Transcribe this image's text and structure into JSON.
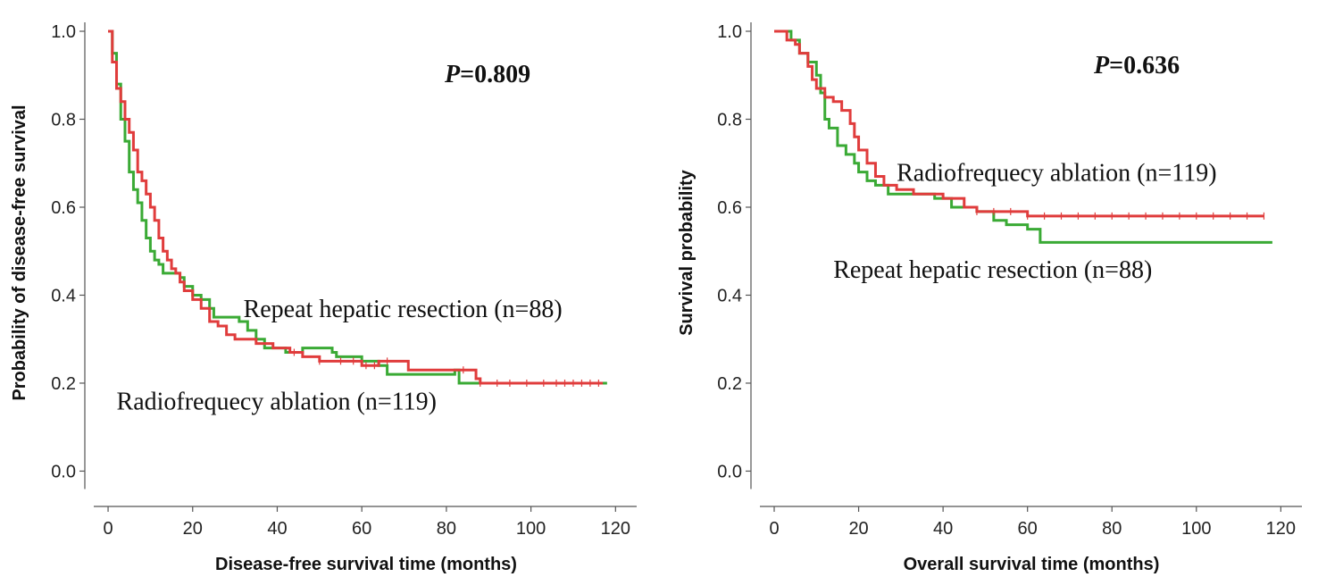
{
  "chart_data": [
    {
      "type": "line",
      "xlabel": "Disease-free survival time (months)",
      "ylabel": "Probability of disease-free survival",
      "xlim": [
        0,
        120
      ],
      "ylim": [
        0.0,
        1.0
      ],
      "xticks": [
        "0",
        "20",
        "40",
        "60",
        "80",
        "100",
        "120"
      ],
      "yticks": [
        "0.0",
        "0.2",
        "0.4",
        "0.6",
        "0.8",
        "1.0"
      ],
      "xtick_values": [
        0,
        20,
        40,
        60,
        80,
        100,
        120
      ],
      "ytick_values": [
        0.0,
        0.2,
        0.4,
        0.6,
        0.8,
        1.0
      ],
      "p_value": {
        "prefix": "P",
        "text": "=0.809"
      },
      "annotations": [
        {
          "text": "Repeat hepatic resection (n=88)",
          "x": 32,
          "y": 0.35
        },
        {
          "text": "Radiofrequecy ablation (n=119)",
          "x": 2,
          "y": 0.14
        }
      ],
      "series": [
        {
          "color": "#3aaa35",
          "points": [
            [
              0,
              1.0
            ],
            [
              1,
              0.95
            ],
            [
              2,
              0.88
            ],
            [
              3,
              0.8
            ],
            [
              4,
              0.75
            ],
            [
              5,
              0.68
            ],
            [
              6,
              0.64
            ],
            [
              7,
              0.61
            ],
            [
              8,
              0.57
            ],
            [
              9,
              0.53
            ],
            [
              10,
              0.5
            ],
            [
              11,
              0.48
            ],
            [
              12,
              0.47
            ],
            [
              13,
              0.45
            ],
            [
              17,
              0.44
            ],
            [
              18,
              0.42
            ],
            [
              20,
              0.4
            ],
            [
              22,
              0.39
            ],
            [
              24,
              0.37
            ],
            [
              25,
              0.35
            ],
            [
              31,
              0.34
            ],
            [
              33,
              0.32
            ],
            [
              35,
              0.3
            ],
            [
              37,
              0.28
            ],
            [
              42,
              0.27
            ],
            [
              46,
              0.28
            ],
            [
              52,
              0.28
            ],
            [
              53,
              0.27
            ],
            [
              54,
              0.26
            ],
            [
              60,
              0.25
            ],
            [
              64,
              0.24
            ],
            [
              66,
              0.22
            ],
            [
              80,
              0.22
            ],
            [
              82,
              0.23
            ],
            [
              83,
              0.2
            ],
            [
              118,
              0.2
            ]
          ]
        },
        {
          "color": "#e03c3c",
          "points": [
            [
              0,
              1.0
            ],
            [
              1,
              0.93
            ],
            [
              2,
              0.87
            ],
            [
              3,
              0.84
            ],
            [
              4,
              0.8
            ],
            [
              5,
              0.77
            ],
            [
              6,
              0.73
            ],
            [
              7,
              0.68
            ],
            [
              8,
              0.66
            ],
            [
              9,
              0.63
            ],
            [
              10,
              0.6
            ],
            [
              11,
              0.57
            ],
            [
              12,
              0.53
            ],
            [
              13,
              0.5
            ],
            [
              14,
              0.48
            ],
            [
              15,
              0.46
            ],
            [
              16,
              0.45
            ],
            [
              17,
              0.43
            ],
            [
              18,
              0.41
            ],
            [
              20,
              0.39
            ],
            [
              22,
              0.37
            ],
            [
              24,
              0.34
            ],
            [
              26,
              0.33
            ],
            [
              28,
              0.31
            ],
            [
              30,
              0.3
            ],
            [
              33,
              0.3
            ],
            [
              35,
              0.29
            ],
            [
              39,
              0.28
            ],
            [
              43,
              0.27
            ],
            [
              46,
              0.26
            ],
            [
              50,
              0.25
            ],
            [
              56,
              0.25
            ],
            [
              60,
              0.24
            ],
            [
              64,
              0.25
            ],
            [
              71,
              0.23
            ],
            [
              86,
              0.23
            ],
            [
              87,
              0.21
            ],
            [
              88,
              0.2
            ],
            [
              117,
              0.2
            ]
          ]
        }
      ],
      "censor_ticks_x": [
        44,
        50,
        55,
        58,
        61,
        63,
        66,
        84,
        88,
        92,
        95,
        99,
        103,
        106,
        108,
        110,
        112,
        114,
        116
      ]
    },
    {
      "type": "line",
      "xlabel": "Overall survival time (months)",
      "ylabel": "Survival probability",
      "xlim": [
        0,
        120
      ],
      "ylim": [
        0.0,
        1.0
      ],
      "xticks": [
        "0",
        "20",
        "40",
        "60",
        "80",
        "100",
        "120"
      ],
      "yticks": [
        "0.0",
        "0.2",
        "0.4",
        "0.6",
        "0.8",
        "1.0"
      ],
      "xtick_values": [
        0,
        20,
        40,
        60,
        80,
        100,
        120
      ],
      "ytick_values": [
        0.0,
        0.2,
        0.4,
        0.6,
        0.8,
        1.0
      ],
      "p_value": {
        "prefix": "P",
        "text": "=0.636"
      },
      "annotations": [
        {
          "text": "Radiofrequecy ablation (n=119)",
          "x": 29,
          "y": 0.66
        },
        {
          "text": "Repeat hepatic resection (n=88)",
          "x": 14,
          "y": 0.44
        }
      ],
      "series": [
        {
          "color": "#3aaa35",
          "points": [
            [
              0,
              1.0
            ],
            [
              4,
              0.98
            ],
            [
              6,
              0.95
            ],
            [
              8,
              0.93
            ],
            [
              10,
              0.9
            ],
            [
              11,
              0.86
            ],
            [
              12,
              0.8
            ],
            [
              13,
              0.78
            ],
            [
              15,
              0.74
            ],
            [
              17,
              0.72
            ],
            [
              19,
              0.7
            ],
            [
              20,
              0.68
            ],
            [
              22,
              0.66
            ],
            [
              24,
              0.65
            ],
            [
              27,
              0.63
            ],
            [
              38,
              0.62
            ],
            [
              42,
              0.6
            ],
            [
              48,
              0.59
            ],
            [
              52,
              0.57
            ],
            [
              55,
              0.56
            ],
            [
              60,
              0.55
            ],
            [
              63,
              0.52
            ],
            [
              65,
              0.52
            ],
            [
              118,
              0.52
            ]
          ]
        },
        {
          "color": "#e03c3c",
          "points": [
            [
              0,
              1.0
            ],
            [
              3,
              0.98
            ],
            [
              5,
              0.97
            ],
            [
              6,
              0.95
            ],
            [
              8,
              0.92
            ],
            [
              9,
              0.89
            ],
            [
              10,
              0.87
            ],
            [
              12,
              0.85
            ],
            [
              14,
              0.84
            ],
            [
              16,
              0.82
            ],
            [
              18,
              0.79
            ],
            [
              19,
              0.76
            ],
            [
              20,
              0.73
            ],
            [
              22,
              0.7
            ],
            [
              24,
              0.67
            ],
            [
              26,
              0.65
            ],
            [
              29,
              0.64
            ],
            [
              33,
              0.63
            ],
            [
              40,
              0.62
            ],
            [
              45,
              0.6
            ],
            [
              48,
              0.59
            ],
            [
              56,
              0.59
            ],
            [
              60,
              0.58
            ],
            [
              116,
              0.58
            ]
          ]
        }
      ],
      "censor_ticks_x": [
        48,
        52,
        56,
        60,
        64,
        68,
        72,
        76,
        80,
        84,
        88,
        92,
        96,
        100,
        104,
        108,
        112,
        116
      ]
    }
  ]
}
